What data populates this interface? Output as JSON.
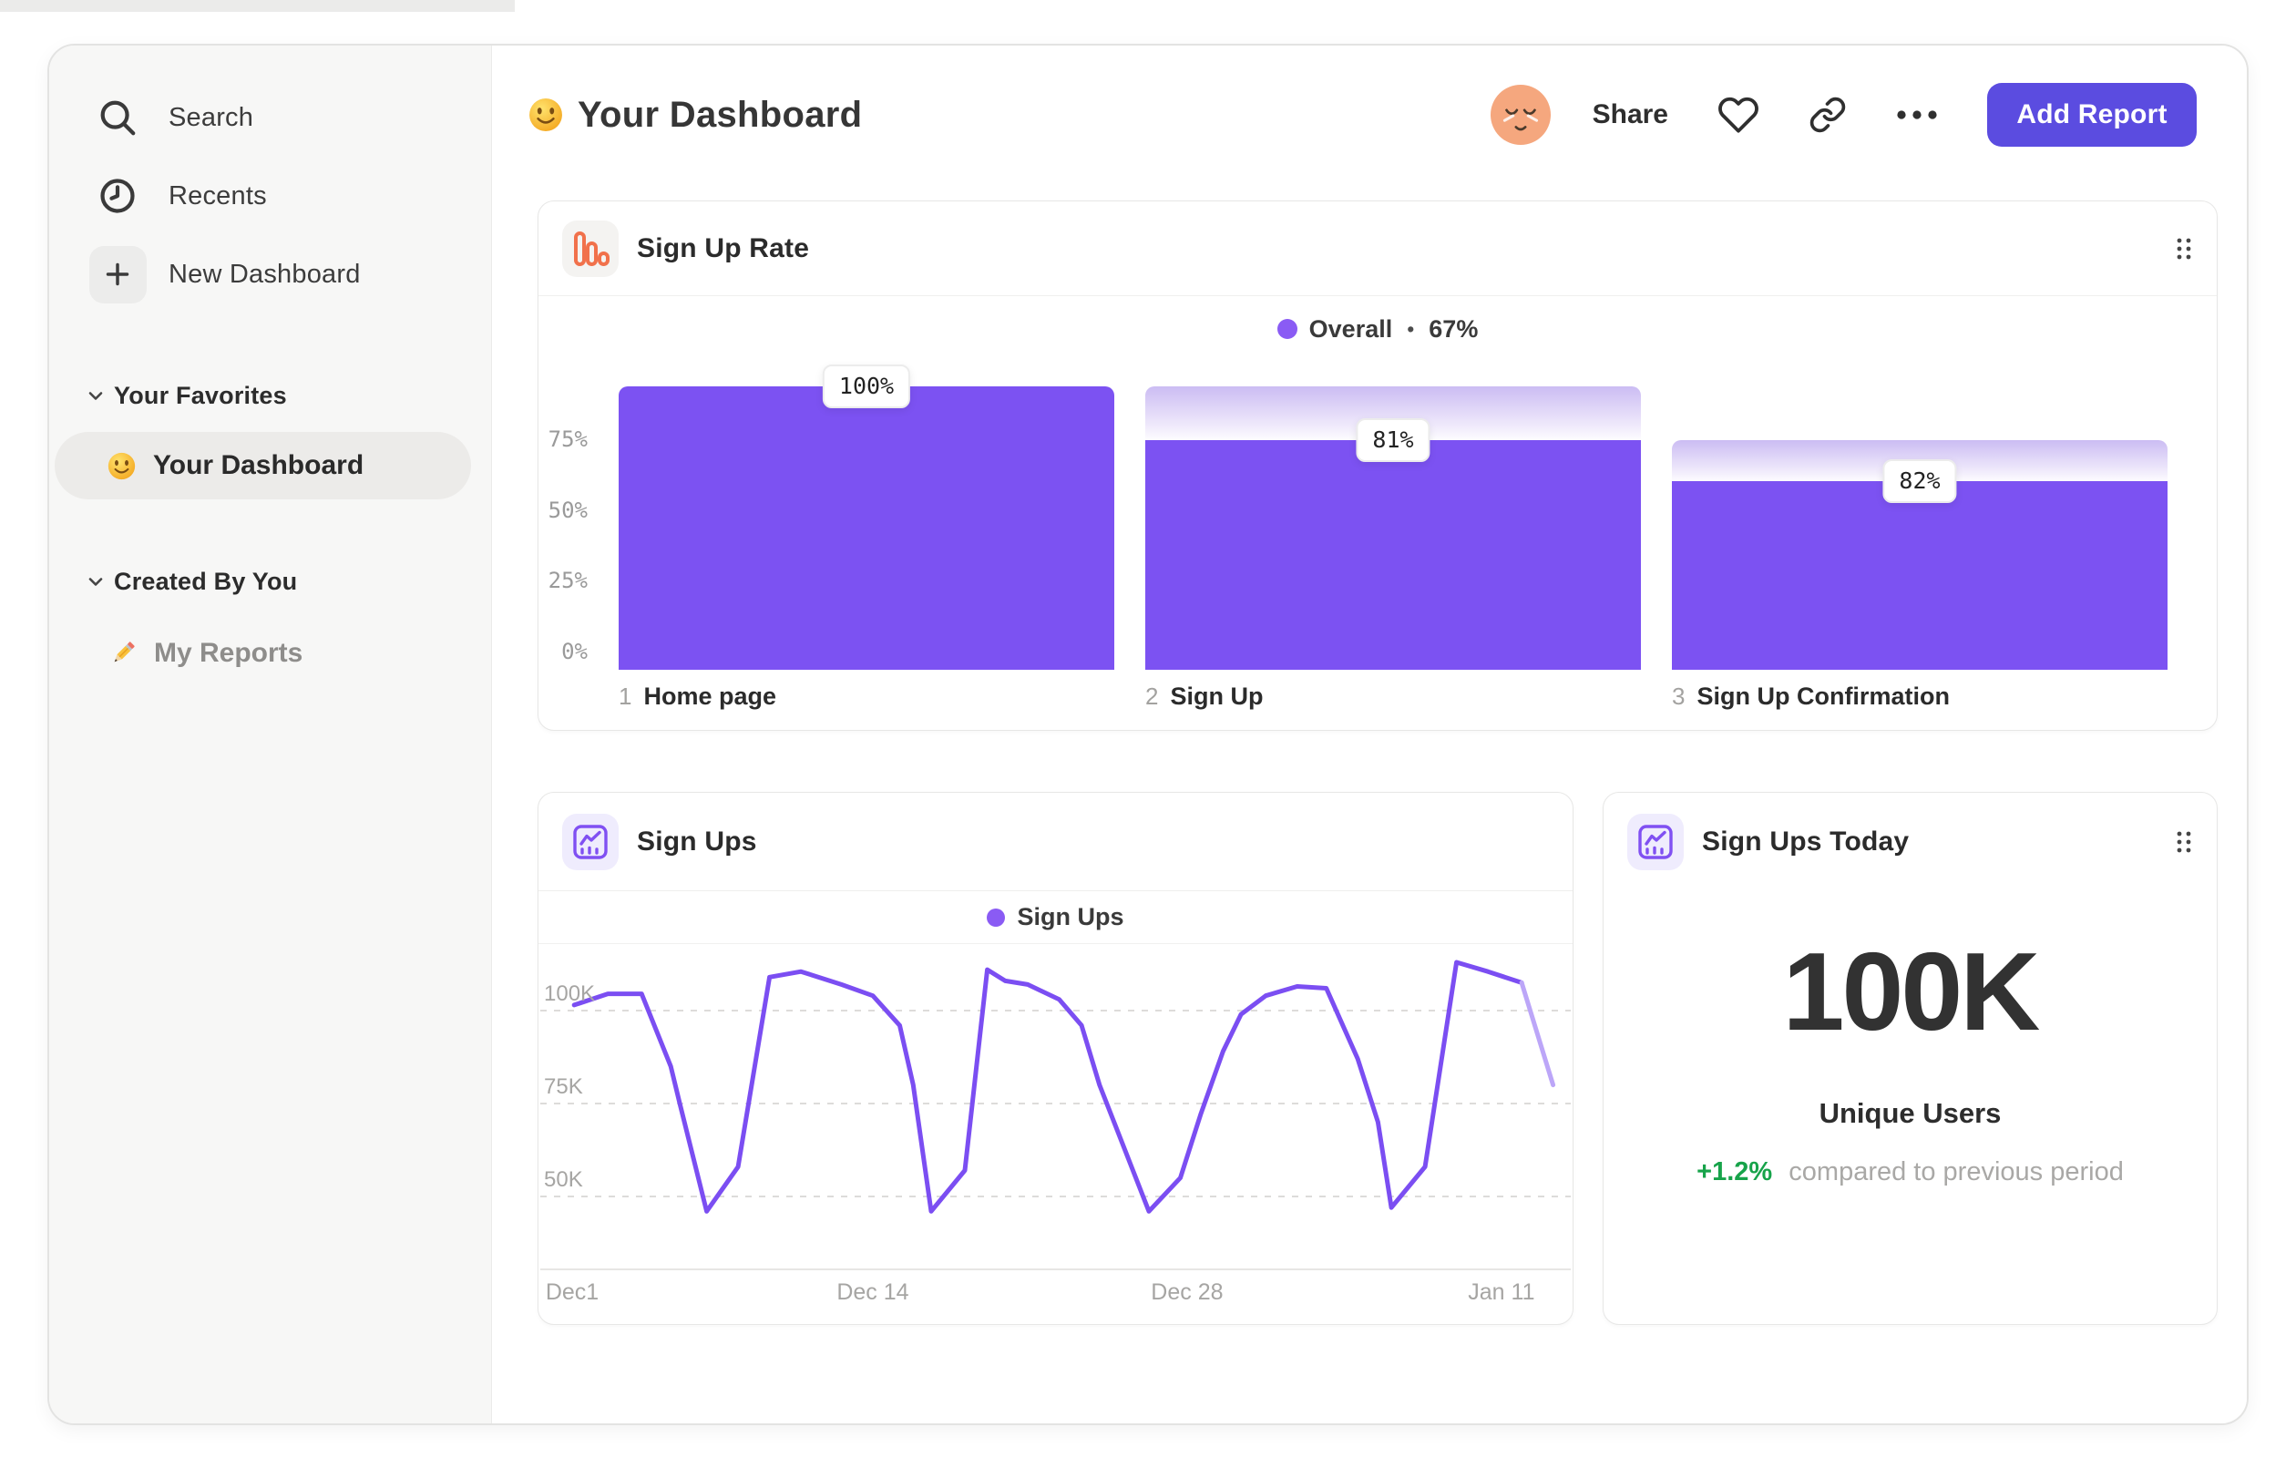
{
  "header": {
    "emoji_icon": "smiley-emoji",
    "title": "Your Dashboard",
    "avatar_icon": "relieved-face-avatar",
    "share_label": "Share",
    "add_report_label": "Add Report"
  },
  "sidebar": {
    "nav": [
      {
        "icon": "search-icon",
        "label": "Search"
      },
      {
        "icon": "clock-icon",
        "label": "Recents"
      },
      {
        "icon": "plus-icon",
        "label": "New Dashboard"
      }
    ],
    "sections": [
      {
        "title": "Your Favorites",
        "items": [
          {
            "icon": "smiley-emoji",
            "label": "Your Dashboard",
            "selected": true
          }
        ]
      },
      {
        "title": "Created By You",
        "items": [
          {
            "icon": "pencil-emoji",
            "label": "My Reports",
            "selected": false
          }
        ]
      }
    ]
  },
  "signup_rate_card": {
    "icon": "bar-chart-icon",
    "title": "Sign Up Rate",
    "legend_label": "Overall",
    "legend_separator": "•",
    "legend_value": "67%"
  },
  "sign_ups_card": {
    "icon": "line-chart-icon",
    "title": "Sign Ups",
    "legend_label": "Sign Ups"
  },
  "sign_ups_today_card": {
    "icon": "line-chart-icon",
    "title": "Sign Ups Today",
    "value": "100K",
    "unit": "Unique Users",
    "delta": "+1.2%",
    "delta_note": "compared to previous period"
  },
  "colors": {
    "accent_purple": "#7B4EF2",
    "accent_purple_faded": "#BCA6F8",
    "legend_dot_purple": "#8A5BF4",
    "button_purple": "#5B4CE0",
    "icon_orange": "#F1714B",
    "icon_lavender_bg": "#EFECFD",
    "delta_green": "#17A34A",
    "sidebar_bg": "#F7F7F6",
    "card_border": "#E7E7E6",
    "text_dark": "#2B2B2B",
    "text_gray": "#9B9B9B"
  },
  "chart_data": [
    {
      "type": "bar",
      "subtype": "funnel",
      "title": "Sign Up Rate",
      "legend": "Overall • 67%",
      "step_indices": [
        "1",
        "2",
        "3"
      ],
      "categories": [
        "Home page",
        "Sign Up",
        "Sign Up Confirmation"
      ],
      "step_conversion_pct": [
        100,
        81,
        82
      ],
      "overall_pct": [
        100,
        81,
        66.4
      ],
      "badges": [
        "100%",
        "81%",
        "82%"
      ],
      "y_tick_labels": [
        "75%",
        "50%",
        "25%",
        "0%"
      ],
      "y_tick_values": [
        75,
        50,
        25,
        0
      ],
      "ylim": [
        0,
        108
      ],
      "grid": false,
      "legend_position": "top-center"
    },
    {
      "type": "line",
      "title": "Sign Ups",
      "series_name": "Sign Ups",
      "x_tick_labels": [
        "Dec1",
        "Dec 14",
        "Dec 28",
        "Jan 11"
      ],
      "x_tick_days": [
        0,
        14,
        28,
        42
      ],
      "y_tick_labels": [
        "100K",
        "75K",
        "50K"
      ],
      "y_tick_values_K": [
        100,
        75,
        50
      ],
      "value_unit": "thousands of sign ups",
      "points_day_valueK": [
        [
          0.7,
          101.5
        ],
        [
          2.2,
          104.5
        ],
        [
          3.7,
          104.5
        ],
        [
          5.0,
          85
        ],
        [
          5.4,
          75
        ],
        [
          6.6,
          46
        ],
        [
          8.0,
          58
        ],
        [
          9.4,
          109
        ],
        [
          10.8,
          110.5
        ],
        [
          12.6,
          107
        ],
        [
          14.0,
          104
        ],
        [
          15.2,
          96
        ],
        [
          15.8,
          80
        ],
        [
          16.6,
          46
        ],
        [
          18.1,
          57
        ],
        [
          19.1,
          111
        ],
        [
          19.9,
          108
        ],
        [
          20.9,
          107
        ],
        [
          22.3,
          103
        ],
        [
          23.3,
          96
        ],
        [
          24.1,
          80
        ],
        [
          26.3,
          46
        ],
        [
          27.7,
          55
        ],
        [
          28.6,
          72
        ],
        [
          29.6,
          89
        ],
        [
          30.4,
          99
        ],
        [
          31.5,
          104
        ],
        [
          32.9,
          106.5
        ],
        [
          34.2,
          106
        ],
        [
          35.6,
          87
        ],
        [
          36.5,
          70
        ],
        [
          37.1,
          47
        ],
        [
          38.6,
          58
        ],
        [
          40.0,
          113
        ],
        [
          41.4,
          110.5
        ],
        [
          42.9,
          107.5
        ],
        [
          44.3,
          80
        ]
      ],
      "fade_from_index": 35,
      "grid": "dashed-horizontal",
      "legend_position": "top-center"
    }
  ]
}
